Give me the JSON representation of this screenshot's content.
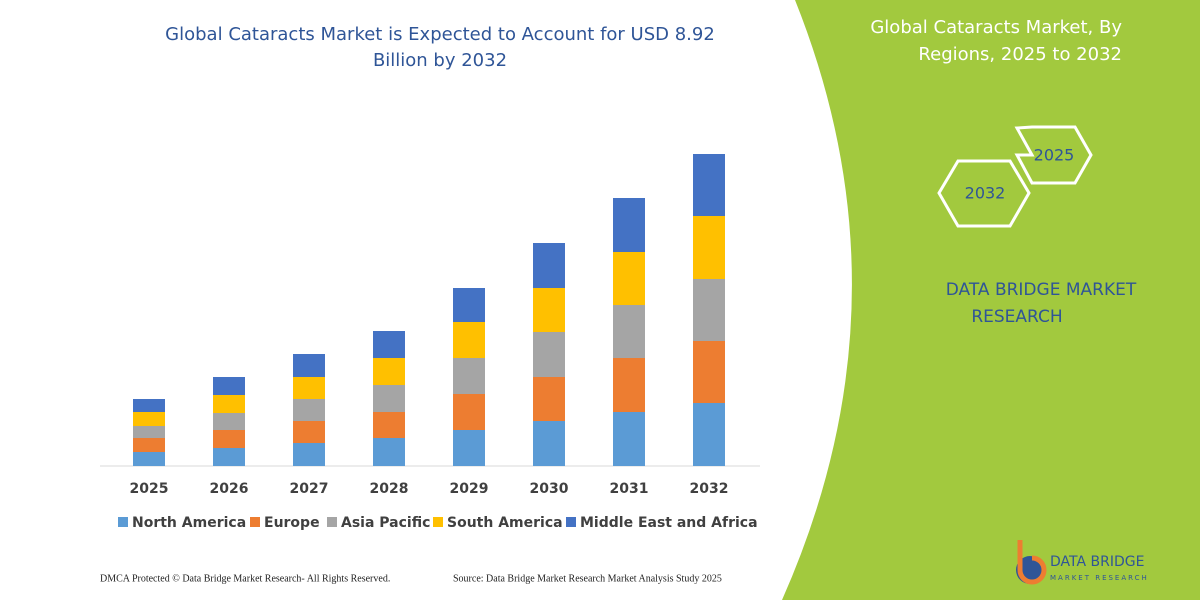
{
  "chart_data": {
    "type": "stacked-bar",
    "title": "Global Cataracts Market is Expected to Account for USD 8.92",
    "title_line2": "Billion by 2032",
    "categories": [
      "2025",
      "2026",
      "2027",
      "2028",
      "2029",
      "2030",
      "2031",
      "2032"
    ],
    "series": [
      {
        "name": "North America",
        "color": "#5b9bd5",
        "values": [
          14,
          18,
          23,
          28,
          36,
          45,
          54,
          63
        ]
      },
      {
        "name": "Europe",
        "color": "#ed7d31",
        "values": [
          14,
          18,
          22,
          26,
          36,
          44,
          54,
          62
        ]
      },
      {
        "name": "Asia Pacific",
        "color": "#a5a5a5",
        "values": [
          12,
          17,
          22,
          27,
          36,
          45,
          53,
          62
        ]
      },
      {
        "name": "South America",
        "color": "#ffc000",
        "values": [
          14,
          18,
          22,
          27,
          36,
          44,
          53,
          63
        ]
      },
      {
        "name": "Middle East and Africa",
        "color": "#4472c4",
        "values": [
          13,
          18,
          23,
          27,
          34,
          45,
          54,
          62
        ]
      }
    ],
    "legend": "bottom"
  },
  "panel": {
    "title_line1": "Global Cataracts Market, By",
    "title_line2": "Regions, 2025 to 2032",
    "hex_start": "2025",
    "hex_end": "2032",
    "brand_line1": "DATA BRIDGE MARKET",
    "brand_line2": "RESEARCH"
  },
  "footer": {
    "copyright": "DMCA Protected © Data Bridge Market Research-  All Rights Reserved.",
    "source": "Source: Data Bridge Market Research  Market Analysis Study 2025"
  },
  "logo": {
    "name": "DATA BRIDGE",
    "tagline": "MARKET RESEARCH"
  }
}
